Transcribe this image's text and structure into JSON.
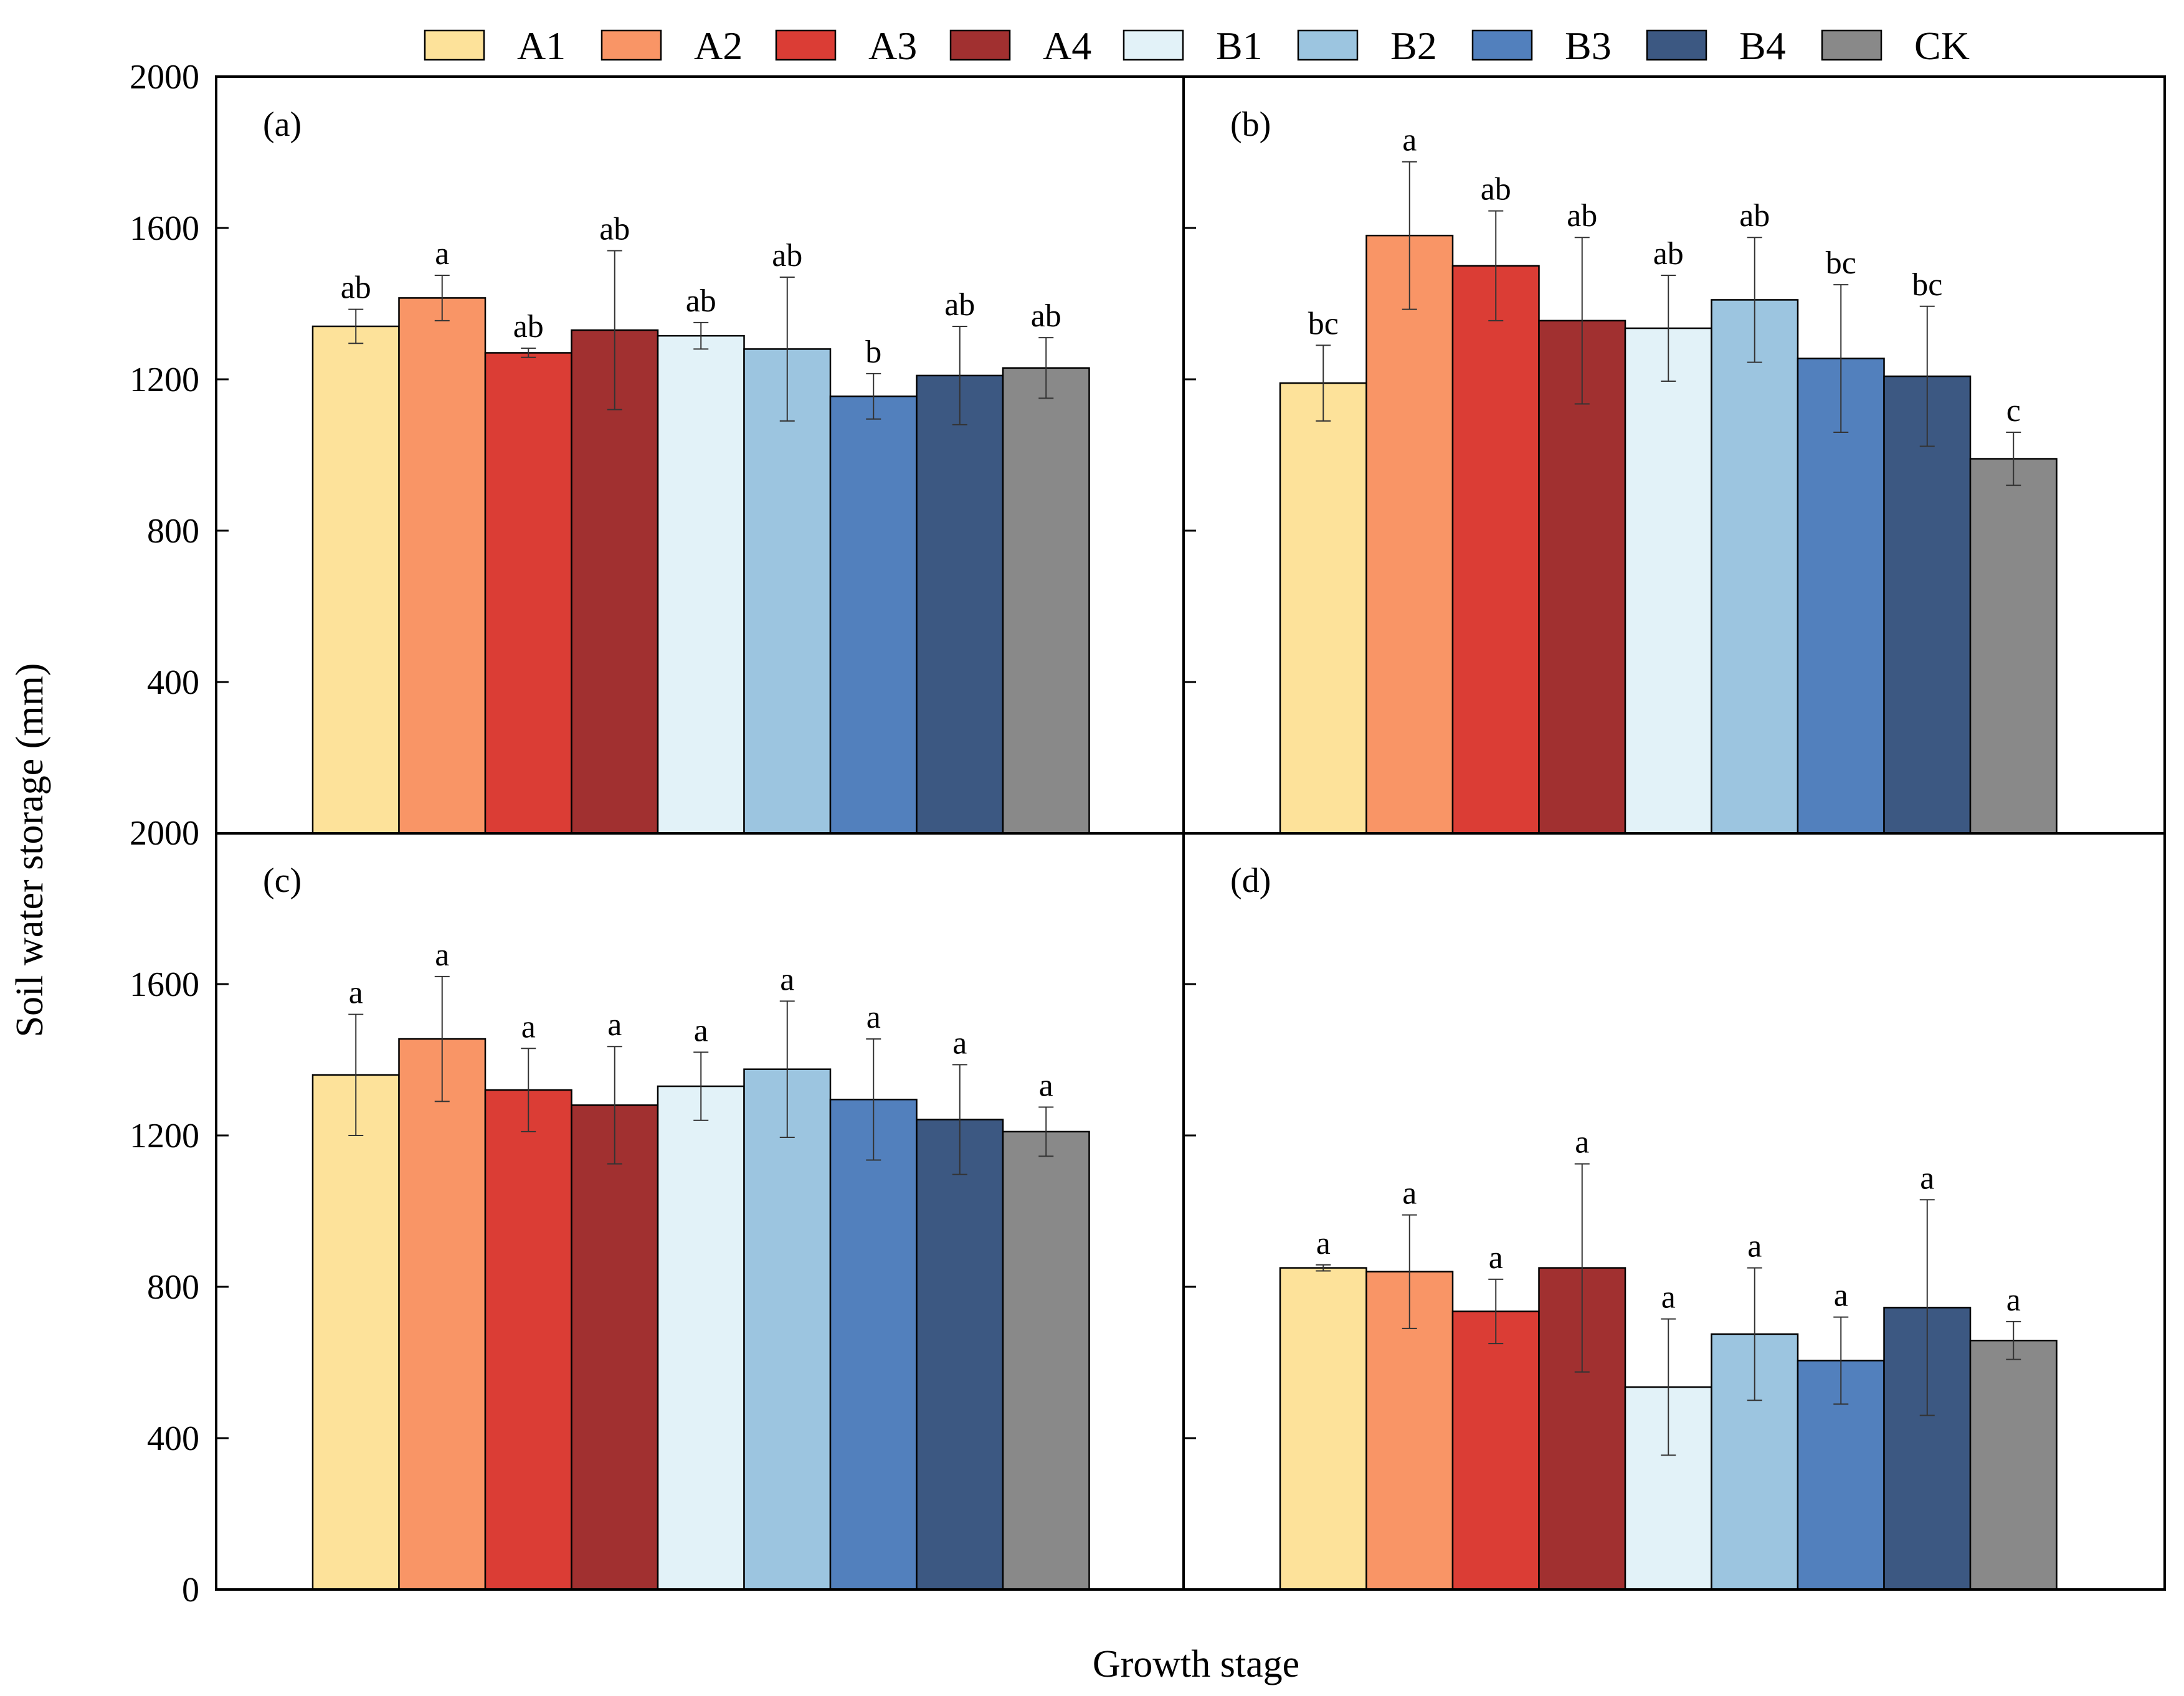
{
  "chart_data": {
    "type": "bar",
    "xlabel": "Growth stage",
    "ylabel": "Soil water storage (mm)",
    "ylim": [
      0,
      2000
    ],
    "y_ticks": [
      0,
      400,
      800,
      1200,
      1600,
      2000
    ],
    "y_tick_labels_top": [
      "2000",
      "1600",
      "1200",
      "800",
      "400"
    ],
    "y_tick_labels_bottom": [
      "2000",
      "1600",
      "1200",
      "800",
      "400",
      "0"
    ],
    "grid": false,
    "legend_position": "top",
    "categories": [
      "A1",
      "A2",
      "A3",
      "A4",
      "B1",
      "B2",
      "B3",
      "B4",
      "CK"
    ],
    "colors": [
      "#FDE29A",
      "#F99566",
      "#DB3D35",
      "#A13030",
      "#E2F2F8",
      "#9CC5E0",
      "#5280BD",
      "#3C5882",
      "#898989"
    ],
    "panels": [
      {
        "label": "(a)",
        "values": [
          1340,
          1415,
          1270,
          1330,
          1315,
          1280,
          1155,
          1210,
          1230
        ],
        "errors": [
          45,
          60,
          12,
          210,
          35,
          190,
          60,
          130,
          80
        ],
        "significance": [
          "ab",
          "a",
          "ab",
          "ab",
          "ab",
          "ab",
          "b",
          "ab",
          "ab"
        ]
      },
      {
        "label": "(b)",
        "values": [
          1190,
          1580,
          1500,
          1355,
          1335,
          1410,
          1255,
          1208,
          990
        ],
        "errors": [
          100,
          195,
          145,
          220,
          140,
          165,
          195,
          185,
          70
        ],
        "significance": [
          "bc",
          "a",
          "ab",
          "ab",
          "ab",
          "ab",
          "bc",
          "bc",
          "c"
        ]
      },
      {
        "label": "(c)",
        "values": [
          1360,
          1455,
          1320,
          1280,
          1330,
          1375,
          1295,
          1242,
          1210
        ],
        "errors": [
          160,
          165,
          110,
          155,
          90,
          180,
          160,
          145,
          65
        ],
        "significance": [
          "a",
          "a",
          "a",
          "a",
          "a",
          "a",
          "a",
          "a",
          "a"
        ]
      },
      {
        "label": "(d)",
        "values": [
          850,
          840,
          735,
          850,
          535,
          675,
          605,
          745,
          658
        ],
        "errors": [
          8,
          150,
          85,
          275,
          180,
          175,
          115,
          285,
          50
        ],
        "significance": [
          "a",
          "a",
          "a",
          "a",
          "a",
          "a",
          "a",
          "a",
          "a"
        ]
      }
    ]
  }
}
